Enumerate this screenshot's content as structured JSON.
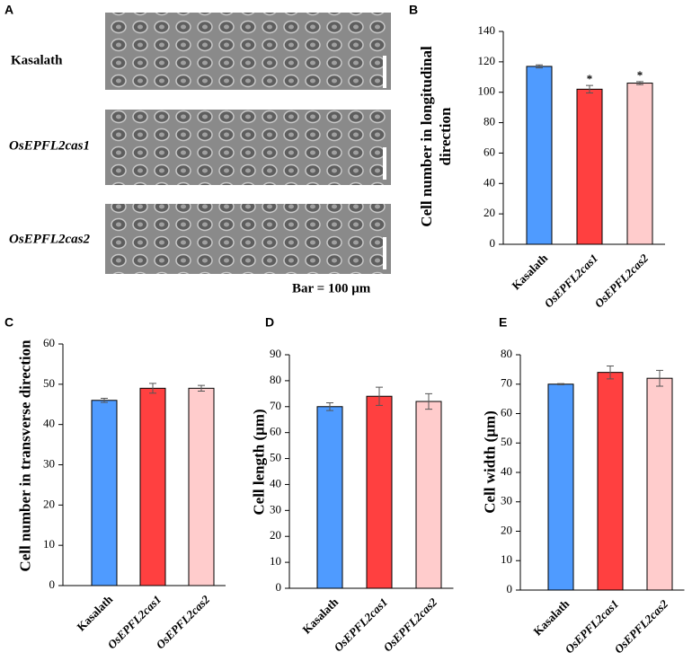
{
  "panel_a": {
    "label": "A",
    "rows": [
      "Kasalath",
      "OsEPFL2cas1",
      "OsEPFL2cas2"
    ],
    "scale_note": "Bar = 100 μm"
  },
  "chart_data": [
    {
      "type": "bar",
      "panel_label": "B",
      "ylabel": "Cell number in longitudinal direction",
      "categories": [
        "Kasalath",
        "OsEPFL2cas1",
        "OsEPFL2cas2"
      ],
      "values": [
        117,
        102,
        106
      ],
      "errors": [
        1,
        2.5,
        1
      ],
      "colors": [
        "#4f9bff",
        "#ff4040",
        "#ffcccc"
      ],
      "significance": [
        null,
        "*",
        "*"
      ],
      "ylim": [
        0,
        140
      ],
      "yticks": [
        0,
        20,
        40,
        60,
        80,
        100,
        120,
        140
      ]
    },
    {
      "type": "bar",
      "panel_label": "C",
      "ylabel": "Cell number in transverse direction",
      "categories": [
        "Kasalath",
        "OsEPFL2cas1",
        "OsEPFL2cas2"
      ],
      "values": [
        46,
        49,
        49
      ],
      "errors": [
        0.5,
        1.2,
        0.7
      ],
      "colors": [
        "#4f9bff",
        "#ff4040",
        "#ffcccc"
      ],
      "ylim": [
        0,
        60
      ],
      "yticks": [
        0,
        10,
        20,
        30,
        40,
        50,
        60
      ]
    },
    {
      "type": "bar",
      "panel_label": "D",
      "ylabel": "Cell length (μm)",
      "categories": [
        "Kasalath",
        "OsEPFL2cas1",
        "OsEPFL2cas2"
      ],
      "values": [
        70,
        74,
        72
      ],
      "errors": [
        1.5,
        3.5,
        3
      ],
      "colors": [
        "#4f9bff",
        "#ff4040",
        "#ffcccc"
      ],
      "ylim": [
        0,
        90
      ],
      "yticks": [
        0,
        10,
        20,
        30,
        40,
        50,
        60,
        70,
        80,
        90
      ]
    },
    {
      "type": "bar",
      "panel_label": "E",
      "ylabel": "Cell width (μm)",
      "categories": [
        "Kasalath",
        "OsEPFL2cas1",
        "OsEPFL2cas2"
      ],
      "values": [
        70,
        74,
        72
      ],
      "errors": [
        0.2,
        2.2,
        2.7
      ],
      "colors": [
        "#4f9bff",
        "#ff4040",
        "#ffcccc"
      ],
      "ylim": [
        0,
        80
      ],
      "yticks": [
        0,
        10,
        20,
        30,
        40,
        50,
        60,
        70,
        80
      ]
    }
  ]
}
